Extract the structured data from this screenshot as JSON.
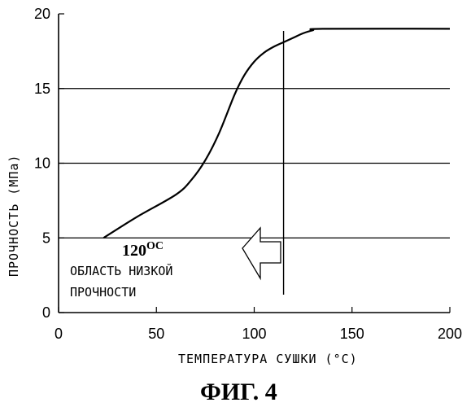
{
  "chart_data": {
    "type": "line",
    "title": "",
    "xlabel": "ТЕМПЕРАТУРА СУШКИ (°С)",
    "ylabel": "ПРОЧНОСТЬ (МПа)",
    "xlim": [
      0,
      200
    ],
    "ylim": [
      0,
      20
    ],
    "x_ticks": [
      "0",
      "50",
      "100",
      "150",
      "200"
    ],
    "y_ticks": [
      "0",
      "5",
      "10",
      "15",
      "20"
    ],
    "grid_y": true,
    "grid_values": [
      5,
      10,
      15
    ],
    "series": [
      {
        "x": [
          23,
          40,
          60,
          68,
          75,
          82,
          90,
          95,
          100,
          105,
          110,
          115,
          120,
          125,
          130,
          135,
          200
        ],
        "y": [
          5.0,
          6.4,
          7.9,
          8.9,
          10.2,
          12.0,
          14.6,
          15.9,
          16.8,
          17.4,
          17.8,
          18.1,
          18.4,
          18.7,
          18.9,
          19.0,
          19.0
        ]
      }
    ],
    "reference_line_x": 115,
    "annotation": {
      "temperature": "120",
      "temperature_unit": "OC",
      "line1": "ОБЛАСТЬ НИЗКОЙ",
      "line2": "ПРОЧНОСТИ"
    },
    "figure_label": "ФИГ. 4"
  }
}
